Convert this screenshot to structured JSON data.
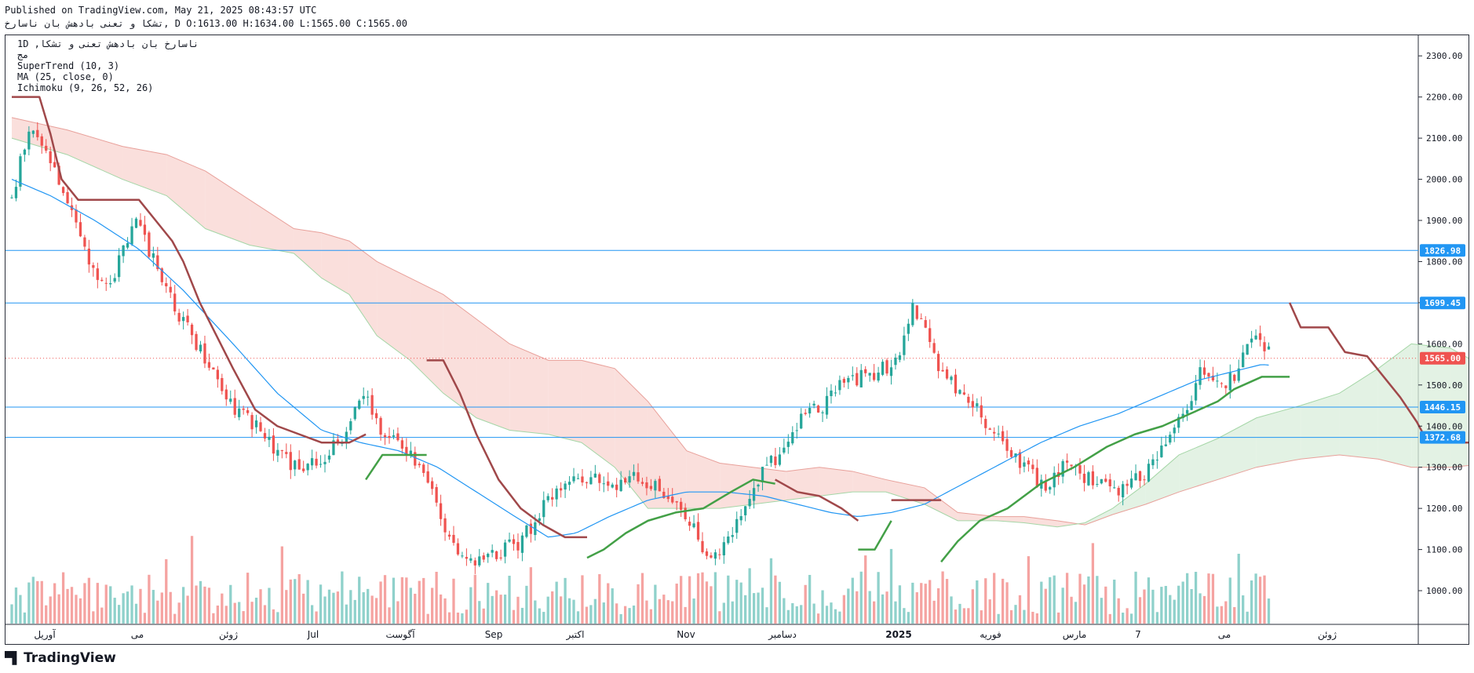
{
  "header": {
    "published_line": "Published on TradingView.com, May 21, 2025 08:43:57 UTC",
    "symbol_line": "تشکا و تعنی بادهش بان ناسارخ, D O:1613.00 H:1634.00 L:1565.00 C:1565.00"
  },
  "legend": {
    "symbol": "1D ,ناسارخ بان بادهش تعنی و تشکا",
    "sub": "مج",
    "supertrend": "SuperTrend (10, 3)",
    "ma": "MA (25, close, 0)",
    "ichimoku": "Ichimoku (9, 26, 52, 26)"
  },
  "footer": {
    "brand": "TradingView",
    "logo_icon": "tradingview-logo-icon"
  },
  "colors": {
    "up": "#26a69a",
    "down": "#ef5350",
    "up_vol": "#8fd1cb",
    "down_vol": "#f5a3a1",
    "supertrend_down": "#a0484a",
    "supertrend_up": "#43a047",
    "ma": "#2196f3",
    "level_line": "#2196f3",
    "cloud_bear": "#f8d4d0",
    "cloud_bull": "#d9eedb",
    "last_price": "#ef5350"
  },
  "chart_data": {
    "type": "candlestick",
    "ylim": [
      920,
      2350
    ],
    "y_ticks": [
      "2300.00",
      "2200.00",
      "2100.00",
      "2000.00",
      "1900.00",
      "1800.00",
      "1700.00",
      "1600.00",
      "1500.00",
      "1400.00",
      "1300.00",
      "1200.00",
      "1100.00",
      "1000.00"
    ],
    "x_ticks": [
      "آوریل",
      "می",
      "ژوئن",
      "Jul",
      "آگوست",
      "Sep",
      "اکتبر",
      "Nov",
      "دسامبر",
      "2025",
      "فوریه",
      "مارس",
      "7",
      "می",
      "ژوئن"
    ],
    "bars_total": 322,
    "data_bars": 294,
    "horizontal_levels": [
      {
        "value": 1826.98,
        "label": "1826.98"
      },
      {
        "value": 1699.45,
        "label": "1699.45"
      },
      {
        "value": 1446.15,
        "label": "1446.15"
      },
      {
        "value": 1372.68,
        "label": "1372.68"
      }
    ],
    "last_price": {
      "value": 1565.0,
      "label": "1565.00"
    },
    "close_anchors": [
      [
        0,
        1950
      ],
      [
        6,
        2120
      ],
      [
        14,
        2050
      ],
      [
        22,
        1900
      ],
      [
        30,
        1780
      ],
      [
        36,
        1750
      ],
      [
        44,
        1900
      ],
      [
        52,
        1800
      ],
      [
        62,
        1650
      ],
      [
        72,
        1550
      ],
      [
        80,
        1450
      ],
      [
        88,
        1400
      ],
      [
        96,
        1330
      ],
      [
        104,
        1300
      ],
      [
        112,
        1320
      ],
      [
        120,
        1380
      ],
      [
        128,
        1480
      ],
      [
        134,
        1380
      ],
      [
        140,
        1360
      ],
      [
        146,
        1320
      ],
      [
        154,
        1200
      ],
      [
        160,
        1100
      ],
      [
        168,
        1080
      ],
      [
        176,
        1090
      ],
      [
        184,
        1120
      ],
      [
        192,
        1200
      ],
      [
        200,
        1260
      ],
      [
        208,
        1280
      ],
      [
        218,
        1260
      ],
      [
        226,
        1270
      ],
      [
        236,
        1240
      ],
      [
        244,
        1170
      ],
      [
        252,
        1090
      ],
      [
        258,
        1100
      ],
      [
        264,
        1200
      ],
      [
        272,
        1300
      ],
      [
        278,
        1330
      ],
      [
        286,
        1430
      ],
      [
        294,
        1450
      ],
      [
        300,
        1500
      ],
      [
        308,
        1520
      ],
      [
        316,
        1540
      ],
      [
        322,
        1600
      ],
      [
        326,
        1690
      ],
      [
        330,
        1640
      ],
      [
        336,
        1520
      ],
      [
        344,
        1480
      ],
      [
        350,
        1430
      ],
      [
        356,
        1380
      ],
      [
        362,
        1330
      ],
      [
        368,
        1290
      ],
      [
        374,
        1240
      ],
      [
        380,
        1310
      ],
      [
        388,
        1280
      ],
      [
        394,
        1260
      ],
      [
        400,
        1240
      ],
      [
        406,
        1270
      ],
      [
        412,
        1300
      ],
      [
        418,
        1370
      ],
      [
        424,
        1430
      ],
      [
        430,
        1530
      ],
      [
        436,
        1500
      ],
      [
        442,
        1520
      ],
      [
        448,
        1600
      ],
      [
        452,
        1610
      ],
      [
        456,
        1565
      ]
    ],
    "supertrend": [
      {
        "trend": "down",
        "points": [
          [
            0,
            2200
          ],
          [
            10,
            2200
          ],
          [
            14,
            2110
          ],
          [
            18,
            2000
          ],
          [
            24,
            1950
          ],
          [
            36,
            1950
          ],
          [
            46,
            1950
          ],
          [
            52,
            1900
          ],
          [
            58,
            1850
          ],
          [
            62,
            1800
          ],
          [
            68,
            1700
          ],
          [
            74,
            1620
          ],
          [
            80,
            1540
          ],
          [
            88,
            1440
          ],
          [
            96,
            1400
          ],
          [
            104,
            1380
          ],
          [
            112,
            1360
          ],
          [
            122,
            1360
          ],
          [
            128,
            1380
          ]
        ]
      },
      {
        "trend": "up",
        "points": [
          [
            128,
            1270
          ],
          [
            134,
            1330
          ],
          [
            144,
            1330
          ],
          [
            150,
            1330
          ]
        ]
      },
      {
        "trend": "down",
        "points": [
          [
            150,
            1560
          ],
          [
            156,
            1560
          ],
          [
            162,
            1480
          ],
          [
            168,
            1380
          ],
          [
            176,
            1270
          ],
          [
            184,
            1200
          ],
          [
            192,
            1160
          ],
          [
            200,
            1130
          ],
          [
            208,
            1130
          ]
        ]
      },
      {
        "trend": "up",
        "points": [
          [
            208,
            1080
          ],
          [
            214,
            1100
          ],
          [
            222,
            1140
          ],
          [
            230,
            1170
          ],
          [
            240,
            1190
          ],
          [
            250,
            1200
          ],
          [
            260,
            1240
          ],
          [
            268,
            1270
          ],
          [
            276,
            1260
          ]
        ]
      },
      {
        "trend": "down",
        "points": [
          [
            276,
            1270
          ],
          [
            284,
            1240
          ],
          [
            292,
            1230
          ],
          [
            300,
            1200
          ],
          [
            306,
            1170
          ]
        ]
      },
      {
        "trend": "up",
        "points": [
          [
            306,
            1100
          ],
          [
            312,
            1100
          ],
          [
            318,
            1170
          ]
        ]
      },
      {
        "trend": "down",
        "points": [
          [
            318,
            1220
          ],
          [
            336,
            1220
          ]
        ]
      },
      {
        "trend": "up",
        "points": [
          [
            336,
            1070
          ],
          [
            342,
            1120
          ],
          [
            350,
            1170
          ],
          [
            360,
            1200
          ],
          [
            372,
            1260
          ],
          [
            384,
            1300
          ],
          [
            396,
            1350
          ],
          [
            406,
            1380
          ],
          [
            416,
            1400
          ],
          [
            426,
            1430
          ],
          [
            436,
            1460
          ],
          [
            442,
            1490
          ],
          [
            452,
            1520
          ],
          [
            462,
            1520
          ]
        ]
      },
      {
        "trend": "down",
        "points": [
          [
            462,
            1700
          ],
          [
            466,
            1640
          ],
          [
            476,
            1640
          ],
          [
            482,
            1580
          ],
          [
            490,
            1570
          ],
          [
            496,
            1520
          ],
          [
            502,
            1470
          ],
          [
            508,
            1410
          ],
          [
            512,
            1360
          ],
          [
            530,
            1360
          ],
          [
            560,
            1360
          ],
          [
            580,
            1360
          ],
          [
            594,
            1360
          ]
        ]
      },
      {
        "trend": "up",
        "points": [
          [
            594,
            1290
          ],
          [
            600,
            1360
          ],
          [
            608,
            1410
          ],
          [
            630,
            1410
          ],
          [
            638,
            1440
          ],
          [
            650,
            1450
          ]
        ]
      }
    ],
    "ma_anchors": [
      [
        0,
        2000
      ],
      [
        14,
        1960
      ],
      [
        30,
        1900
      ],
      [
        46,
        1830
      ],
      [
        62,
        1730
      ],
      [
        80,
        1600
      ],
      [
        96,
        1480
      ],
      [
        112,
        1390
      ],
      [
        126,
        1360
      ],
      [
        140,
        1340
      ],
      [
        154,
        1300
      ],
      [
        168,
        1240
      ],
      [
        182,
        1180
      ],
      [
        194,
        1130
      ],
      [
        204,
        1140
      ],
      [
        216,
        1180
      ],
      [
        230,
        1220
      ],
      [
        244,
        1240
      ],
      [
        258,
        1240
      ],
      [
        272,
        1230
      ],
      [
        284,
        1210
      ],
      [
        296,
        1190
      ],
      [
        306,
        1180
      ],
      [
        318,
        1190
      ],
      [
        330,
        1210
      ],
      [
        344,
        1260
      ],
      [
        358,
        1310
      ],
      [
        372,
        1360
      ],
      [
        386,
        1400
      ],
      [
        400,
        1430
      ],
      [
        414,
        1470
      ],
      [
        428,
        1510
      ],
      [
        440,
        1530
      ],
      [
        452,
        1550
      ],
      [
        466,
        1540
      ],
      [
        480,
        1500
      ],
      [
        494,
        1430
      ],
      [
        508,
        1370
      ],
      [
        520,
        1310
      ],
      [
        534,
        1270
      ],
      [
        548,
        1250
      ],
      [
        562,
        1250
      ],
      [
        576,
        1260
      ],
      [
        590,
        1280
      ],
      [
        604,
        1330
      ],
      [
        618,
        1390
      ],
      [
        630,
        1440
      ],
      [
        640,
        1480
      ]
    ],
    "cloud_anchors": [
      [
        0,
        2150,
        2100
      ],
      [
        20,
        2120,
        2060
      ],
      [
        40,
        2080,
        2000
      ],
      [
        56,
        2060,
        1960
      ],
      [
        70,
        2020,
        1880
      ],
      [
        86,
        1950,
        1840
      ],
      [
        102,
        1880,
        1820
      ],
      [
        112,
        1870,
        1760
      ],
      [
        122,
        1850,
        1720
      ],
      [
        132,
        1800,
        1620
      ],
      [
        144,
        1760,
        1560
      ],
      [
        156,
        1720,
        1480
      ],
      [
        168,
        1660,
        1420
      ],
      [
        180,
        1600,
        1390
      ],
      [
        194,
        1560,
        1380
      ],
      [
        206,
        1560,
        1360
      ],
      [
        218,
        1540,
        1300
      ],
      [
        230,
        1460,
        1200
      ],
      [
        244,
        1340,
        1200
      ],
      [
        256,
        1310,
        1200
      ],
      [
        268,
        1300,
        1210
      ],
      [
        280,
        1290,
        1220
      ],
      [
        292,
        1300,
        1230
      ],
      [
        304,
        1290,
        1240
      ],
      [
        316,
        1270,
        1240
      ],
      [
        330,
        1250,
        1210
      ],
      [
        342,
        1190,
        1170
      ],
      [
        356,
        1180,
        1170
      ],
      [
        366,
        1180,
        1165
      ],
      [
        378,
        1170,
        1155
      ],
      [
        388,
        1160,
        1165
      ],
      [
        398,
        1185,
        1200
      ],
      [
        410,
        1210,
        1260
      ],
      [
        422,
        1240,
        1330
      ],
      [
        436,
        1270,
        1370
      ],
      [
        450,
        1300,
        1420
      ],
      [
        466,
        1320,
        1450
      ],
      [
        480,
        1330,
        1480
      ],
      [
        494,
        1320,
        1540
      ],
      [
        506,
        1300,
        1600
      ],
      [
        520,
        1300,
        1590
      ],
      [
        536,
        1310,
        1530
      ],
      [
        550,
        1320,
        1510
      ],
      [
        564,
        1340,
        1490
      ],
      [
        576,
        1360,
        1460
      ],
      [
        588,
        1380,
        1440
      ],
      [
        600,
        1400,
        1420
      ],
      [
        612,
        1440,
        1380
      ],
      [
        622,
        1430,
        1330
      ],
      [
        632,
        1410,
        1280
      ],
      [
        642,
        1390,
        1260
      ],
      [
        652,
        1375,
        1250
      ],
      [
        664,
        1370,
        1300
      ],
      [
        676,
        1380,
        1360
      ],
      [
        688,
        1390,
        1420
      ],
      [
        700,
        1400,
        1460
      ],
      [
        712,
        1410,
        1500
      ],
      [
        720,
        1420,
        1510
      ]
    ]
  }
}
